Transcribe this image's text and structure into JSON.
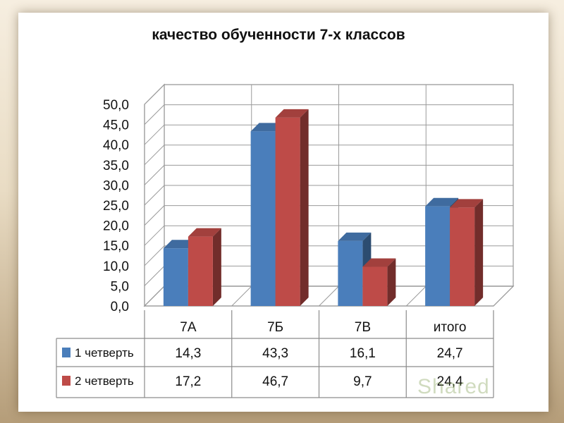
{
  "chart_data": {
    "type": "bar",
    "title": "качество обученности 7-х классов",
    "categories": [
      "7А",
      "7Б",
      "7В",
      "итого"
    ],
    "series": [
      {
        "name": "1 четверть",
        "values": [
          14.3,
          43.3,
          16.1,
          24.7
        ],
        "labels": [
          "14,3",
          "43,3",
          "16,1",
          "24,7"
        ],
        "color": "#4a7ebb"
      },
      {
        "name": "2 четверть",
        "values": [
          17.2,
          46.7,
          9.7,
          24.4
        ],
        "labels": [
          "17,2",
          "46,7",
          "9,7",
          "24,4"
        ],
        "color": "#be4b48"
      }
    ],
    "ylim": [
      0,
      50
    ],
    "yticks": [
      "0,0",
      "5,0",
      "10,0",
      "15,0",
      "20,0",
      "25,0",
      "30,0",
      "35,0",
      "40,0",
      "45,0",
      "50,0"
    ],
    "grid": true,
    "data_table": true,
    "legend": "data-table-left"
  },
  "watermark": "Shared"
}
